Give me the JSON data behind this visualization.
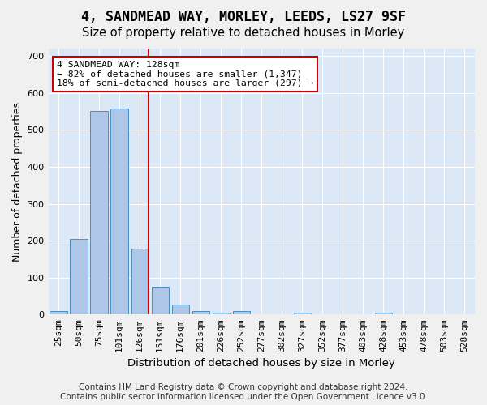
{
  "title": "4, SANDMEAD WAY, MORLEY, LEEDS, LS27 9SF",
  "subtitle": "Size of property relative to detached houses in Morley",
  "xlabel": "Distribution of detached houses by size in Morley",
  "ylabel": "Number of detached properties",
  "footer_line1": "Contains HM Land Registry data © Crown copyright and database right 2024.",
  "footer_line2": "Contains public sector information licensed under the Open Government Licence v3.0.",
  "bin_labels": [
    "25sqm",
    "50sqm",
    "75sqm",
    "101sqm",
    "126sqm",
    "151sqm",
    "176sqm",
    "201sqm",
    "226sqm",
    "252sqm",
    "277sqm",
    "302sqm",
    "327sqm",
    "352sqm",
    "377sqm",
    "403sqm",
    "428sqm",
    "453sqm",
    "478sqm",
    "503sqm",
    "528sqm"
  ],
  "bin_values": [
    10,
    204,
    552,
    558,
    178,
    76,
    27,
    10,
    5,
    10,
    0,
    0,
    5,
    0,
    0,
    0,
    5,
    0,
    0,
    0,
    0
  ],
  "bar_color": "#aec6e8",
  "bar_edge_color": "#4a90c4",
  "property_bin_index": 4,
  "vline_x": 4.42,
  "vline_color": "#cc0000",
  "annotation_text_line1": "4 SANDMEAD WAY: 128sqm",
  "annotation_text_line2": "← 82% of detached houses are smaller (1,347)",
  "annotation_text_line3": "18% of semi-detached houses are larger (297) →",
  "annotation_box_color": "#ffffff",
  "annotation_box_edge": "#cc0000",
  "ylim": [
    0,
    720
  ],
  "yticks": [
    0,
    100,
    200,
    300,
    400,
    500,
    600,
    700
  ],
  "background_color": "#dce8f5",
  "grid_color": "#ffffff",
  "title_fontsize": 12,
  "subtitle_fontsize": 10.5,
  "axis_label_fontsize": 9,
  "tick_fontsize": 8,
  "footer_fontsize": 7.5
}
